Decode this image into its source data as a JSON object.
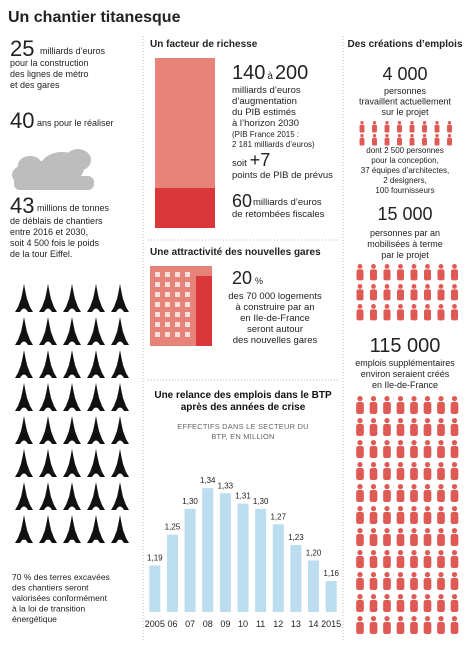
{
  "title": "Un chantier titanesque",
  "cost": {
    "number": "25",
    "lines": [
      "milliards d’euros",
      "pour la construction",
      "des lignes de métro",
      "et des gares"
    ]
  },
  "duration": {
    "number": "40",
    "lines": [
      "ans pour le réaliser"
    ]
  },
  "spoil": {
    "number": "43",
    "lines": [
      "millions de tonnes",
      "de déblais de chantiers",
      "entre 2016 et 2030,",
      "soit  4 500 fois le poids",
      "de la tour Eiffel."
    ]
  },
  "recycling": [
    "70 % des terres excavées",
    "des chantiers seront",
    "valorisées conformément",
    "à la loi de transition",
    "énergétique"
  ],
  "wealth": {
    "heading": "Un facteur de richesse",
    "gdp": {
      "from": "140",
      "sep": "à",
      "to": "200"
    },
    "gdp_lines": [
      "milliards d’euros",
      "d’augmentation",
      "du PIB estimés",
      "à l’horizon 2030"
    ],
    "note": [
      "(PIB France 2015 :",
      "2 181 milliards d’euros)"
    ],
    "share": {
      "prefix": "soit",
      "number": "+7",
      "line": "points de PIB de prévus"
    },
    "tax": {
      "number": "60",
      "lines": [
        "milliards d’euros",
        "de retombées fiscales"
      ]
    }
  },
  "stations": {
    "heading": "Une attractivité des nouvelles gares",
    "number": "20",
    "unit": "%",
    "lines": [
      "des 70 000 logements",
      "à construire par an",
      "en Ile-de-France",
      "seront autour",
      "des nouvelles gares"
    ]
  },
  "jobs": {
    "heading": "Des créations d’emplois",
    "current": {
      "number": "4 000",
      "lines": [
        "personnes",
        "travaillent actuellement",
        "sur le projet"
      ]
    },
    "detail": [
      "dont 2 500 personnes",
      "pour la conception,",
      "37 équipes d’architectes,",
      "2 designers,",
      "100 fournisseurs"
    ],
    "yearly": {
      "number": "15 000",
      "lines": [
        "personnes par an",
        "mobilisées à terme",
        "par le projet"
      ]
    },
    "extra": {
      "number": "115 000",
      "lines": [
        "emplois supplémentaires",
        "environ seraient créés",
        "en Ile-de-France"
      ]
    }
  },
  "chart_data": {
    "type": "bar",
    "title": "Une relance des emplois dans le BTP après des années de crise",
    "subtitle": "EFFECTIFS DANS LE SECTEUR DU BTP, EN MILLION",
    "categories": [
      "2005",
      "06",
      "07",
      "08",
      "09",
      "10",
      "11",
      "12",
      "13",
      "14",
      "2015"
    ],
    "values": [
      1.19,
      1.25,
      1.3,
      1.34,
      1.33,
      1.31,
      1.3,
      1.27,
      1.23,
      1.2,
      1.16
    ],
    "value_labels": [
      "1,19",
      "1,25",
      "1,30",
      "1,34",
      "1,33",
      "1,31",
      "1,30",
      "1,27",
      "1,23",
      "1,20",
      "1,16"
    ],
    "color": "#bcdcf0",
    "ylim": [
      1.1,
      1.35
    ]
  }
}
